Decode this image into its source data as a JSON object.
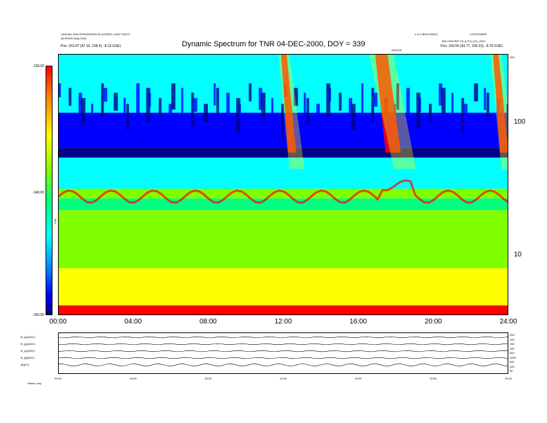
{
  "header": {
    "top_left_line1": "CASSINI 2000 RPWS/RPWS D0 (HORIZ) / INST RIGHT",
    "top_left_line2": "All RPWS Data 2000",
    "top_left_pos": "Pos:  163.47 (47.16, 158.4), -8.13 GSE)",
    "top_right_line1": "1.10 VIEW EZBOX",
    "top_right_line2": "LOG/POWER",
    "top_right_line3": "BIN CENTER TIC (UTC) (11), 2000",
    "top_right_pos": "Pos:  156.56 (43.77, 150.23), -8.76 GSE)",
    "center_small": "DEVICE",
    "freq_unit": "kHz",
    "colorbar_label": "TNR"
  },
  "chart_data": {
    "type": "heatmap",
    "title": "Dynamic Spectrum for TNR 04-DEC-2000, DOY = 339",
    "xlabel": "",
    "ylabel": "",
    "x_ticks": [
      "00:00",
      "04:00",
      "08:00",
      "12:00",
      "16:00",
      "20:00",
      "24:00"
    ],
    "xlim_hours": [
      0,
      24
    ],
    "y_scale": "log",
    "ylim_khz": [
      3.5,
      330
    ],
    "y_ticks": [
      "10",
      "100"
    ],
    "colorbar_range": [
      -150,
      -130
    ],
    "colorbar_ticks": [
      "-130.00",
      "-140.00",
      "-150.00"
    ],
    "features": [
      {
        "name": "dense low band",
        "freq_khz": [
          3.5,
          20
        ],
        "level": "high"
      },
      {
        "name": "plasma line",
        "freq_khz": [
          25,
          30
        ],
        "level": "peak"
      },
      {
        "name": "type III burst",
        "time_hours": 12.0,
        "level": "peak"
      },
      {
        "name": "type II/III burst",
        "time_hours": 17.2,
        "level": "peak"
      },
      {
        "name": "burst",
        "time_hours": 23.3,
        "level": "peak"
      }
    ],
    "colors": {
      "deep": "#00008b",
      "low": "#0000ff",
      "mid_low": "#00ffff",
      "mid": "#00ff80",
      "mid_high": "#80ff00",
      "high": "#ffff00",
      "peak": "#ff0000"
    }
  },
  "bottom_panel": {
    "row_labels": [
      "B_{x}(ADC)",
      "B_{y}(ADC)",
      "B_{z}(ADC)",
      "B_{t}(ADC)",
      "|B|(nT)"
    ],
    "right_labels": [
      "250",
      "200",
      "250",
      "200",
      "500",
      "1000",
      "500",
      "100",
      "50"
    ],
    "x_ticks": [
      "00:00",
      "04:00",
      "08:00",
      "12:00",
      "16:00",
      "20:00",
      "24:00"
    ],
    "footer_left": "Notes:  only"
  }
}
